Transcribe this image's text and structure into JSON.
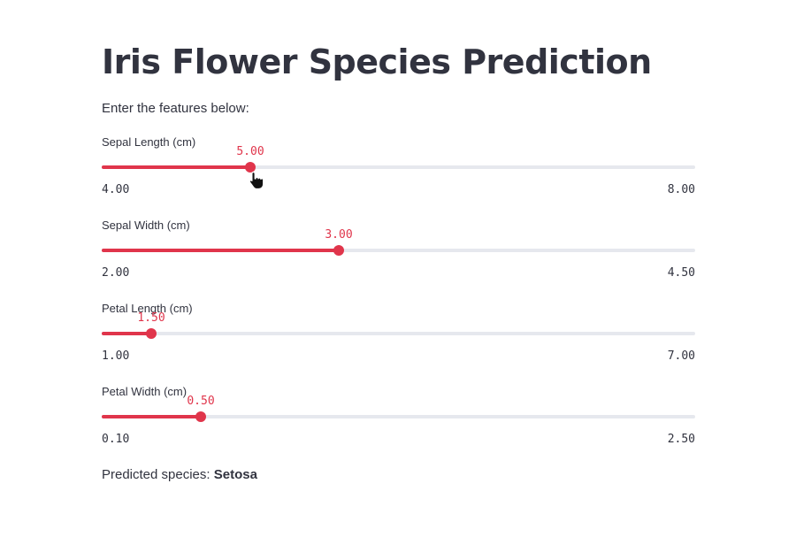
{
  "page": {
    "title": "Iris Flower Species Prediction",
    "intro": "Enter the features below:"
  },
  "sliders": [
    {
      "label": "Sepal Length (cm)",
      "value": 5.0,
      "min": 4.0,
      "max": 8.0,
      "value_text": "5.00",
      "min_text": "4.00",
      "max_text": "8.00"
    },
    {
      "label": "Sepal Width (cm)",
      "value": 3.0,
      "min": 2.0,
      "max": 4.5,
      "value_text": "3.00",
      "min_text": "2.00",
      "max_text": "4.50"
    },
    {
      "label": "Petal Length (cm)",
      "value": 1.5,
      "min": 1.0,
      "max": 7.0,
      "value_text": "1.50",
      "min_text": "1.00",
      "max_text": "7.00"
    },
    {
      "label": "Petal Width (cm)",
      "value": 0.5,
      "min": 0.1,
      "max": 2.5,
      "value_text": "0.50",
      "min_text": "0.10",
      "max_text": "2.50"
    }
  ],
  "result": {
    "prefix": "Predicted species: ",
    "species": "Setosa"
  },
  "colors": {
    "accent": "#e0354b",
    "track": "#e6e8ee",
    "text": "#31333f"
  },
  "cursor_icon": "hand-pointer-icon"
}
